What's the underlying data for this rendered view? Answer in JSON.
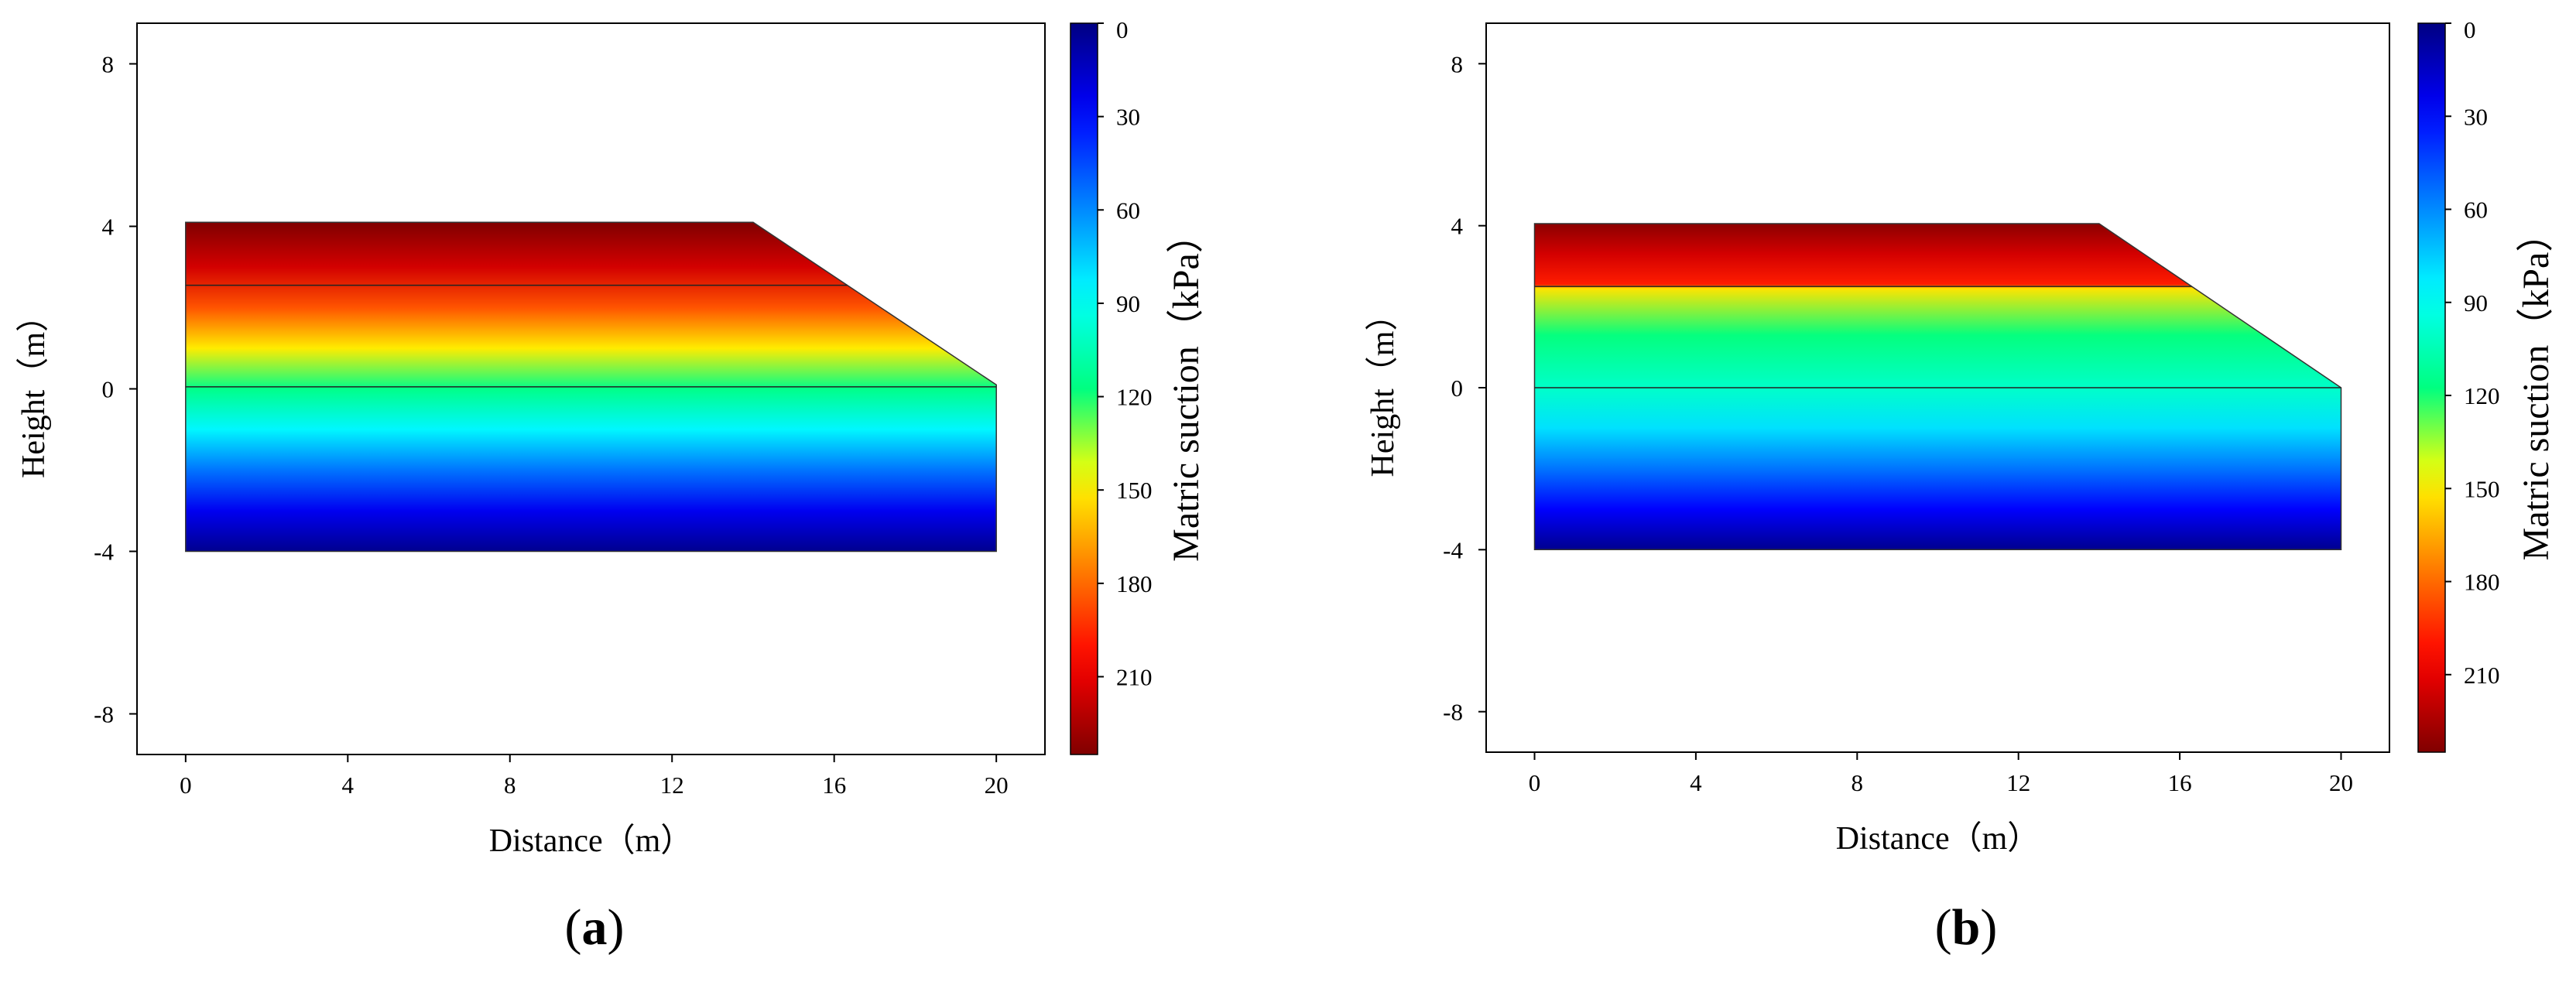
{
  "figure": {
    "panels": [
      {
        "label_open": "(",
        "label_letter": "a",
        "label_close": ")"
      },
      {
        "label_open": "(",
        "label_letter": "b",
        "label_close": ")"
      }
    ]
  },
  "chart_data": [
    {
      "type": "heatmap",
      "panel": "a",
      "title": "",
      "xlabel": "Distance（m）",
      "ylabel": "Height（m）",
      "xlim": [
        -1.2,
        21.2
      ],
      "ylim": [
        -9,
        9
      ],
      "xticks": [
        0,
        4,
        8,
        12,
        16,
        20
      ],
      "yticks": [
        -8,
        -4,
        0,
        4,
        8
      ],
      "domain_outline": [
        [
          0,
          -4
        ],
        [
          20,
          -4
        ],
        [
          20,
          0.1
        ],
        [
          14,
          4.1
        ],
        [
          0,
          4.1
        ]
      ],
      "layer_boundaries_y": [
        2.55,
        0.05
      ],
      "suction_profile": [
        {
          "height": 4.1,
          "suction": 235
        },
        {
          "height": 3.0,
          "suction": 215
        },
        {
          "height": 2.0,
          "suction": 185
        },
        {
          "height": 1.0,
          "suction": 150
        },
        {
          "height": 0.0,
          "suction": 115
        },
        {
          "height": -1.0,
          "suction": 85
        },
        {
          "height": -2.0,
          "suction": 55
        },
        {
          "height": -3.0,
          "suction": 25
        },
        {
          "height": -4.0,
          "suction": 3
        }
      ],
      "colorbar": {
        "label": "Matric suction（kPa）",
        "ticks": [
          0,
          30,
          60,
          90,
          120,
          150,
          180,
          210
        ],
        "range": [
          0,
          235
        ],
        "reversed": true
      },
      "grid": false
    },
    {
      "type": "heatmap",
      "panel": "b",
      "title": "",
      "xlabel": "Distance（m）",
      "ylabel": "Height（m）",
      "xlim": [
        -1.2,
        21.2
      ],
      "ylim": [
        -9,
        9
      ],
      "xticks": [
        0,
        4,
        8,
        12,
        16,
        20
      ],
      "yticks": [
        -8,
        -4,
        0,
        4,
        8
      ],
      "domain_outline": [
        [
          0,
          -4
        ],
        [
          20,
          -4
        ],
        [
          20,
          0.0
        ],
        [
          14,
          4.05
        ],
        [
          0,
          4.05
        ]
      ],
      "layer_boundaries_y": [
        2.5,
        0.0
      ],
      "suction_profile": [
        {
          "height": 4.05,
          "suction": 232
        },
        {
          "height": 3.3,
          "suction": 215
        },
        {
          "height": 2.55,
          "suction": 198
        },
        {
          "height": 2.45,
          "suction": 152
        },
        {
          "height": 1.3,
          "suction": 118
        },
        {
          "height": 0.0,
          "suction": 100
        },
        {
          "height": -1.0,
          "suction": 80
        },
        {
          "height": -2.0,
          "suction": 55
        },
        {
          "height": -3.0,
          "suction": 28
        },
        {
          "height": -4.0,
          "suction": 3
        }
      ],
      "colorbar": {
        "label": "Matric suction（kPa）",
        "ticks": [
          0,
          30,
          60,
          90,
          120,
          150,
          180,
          210
        ],
        "range": [
          0,
          235
        ],
        "reversed": true
      },
      "grid": false
    }
  ]
}
